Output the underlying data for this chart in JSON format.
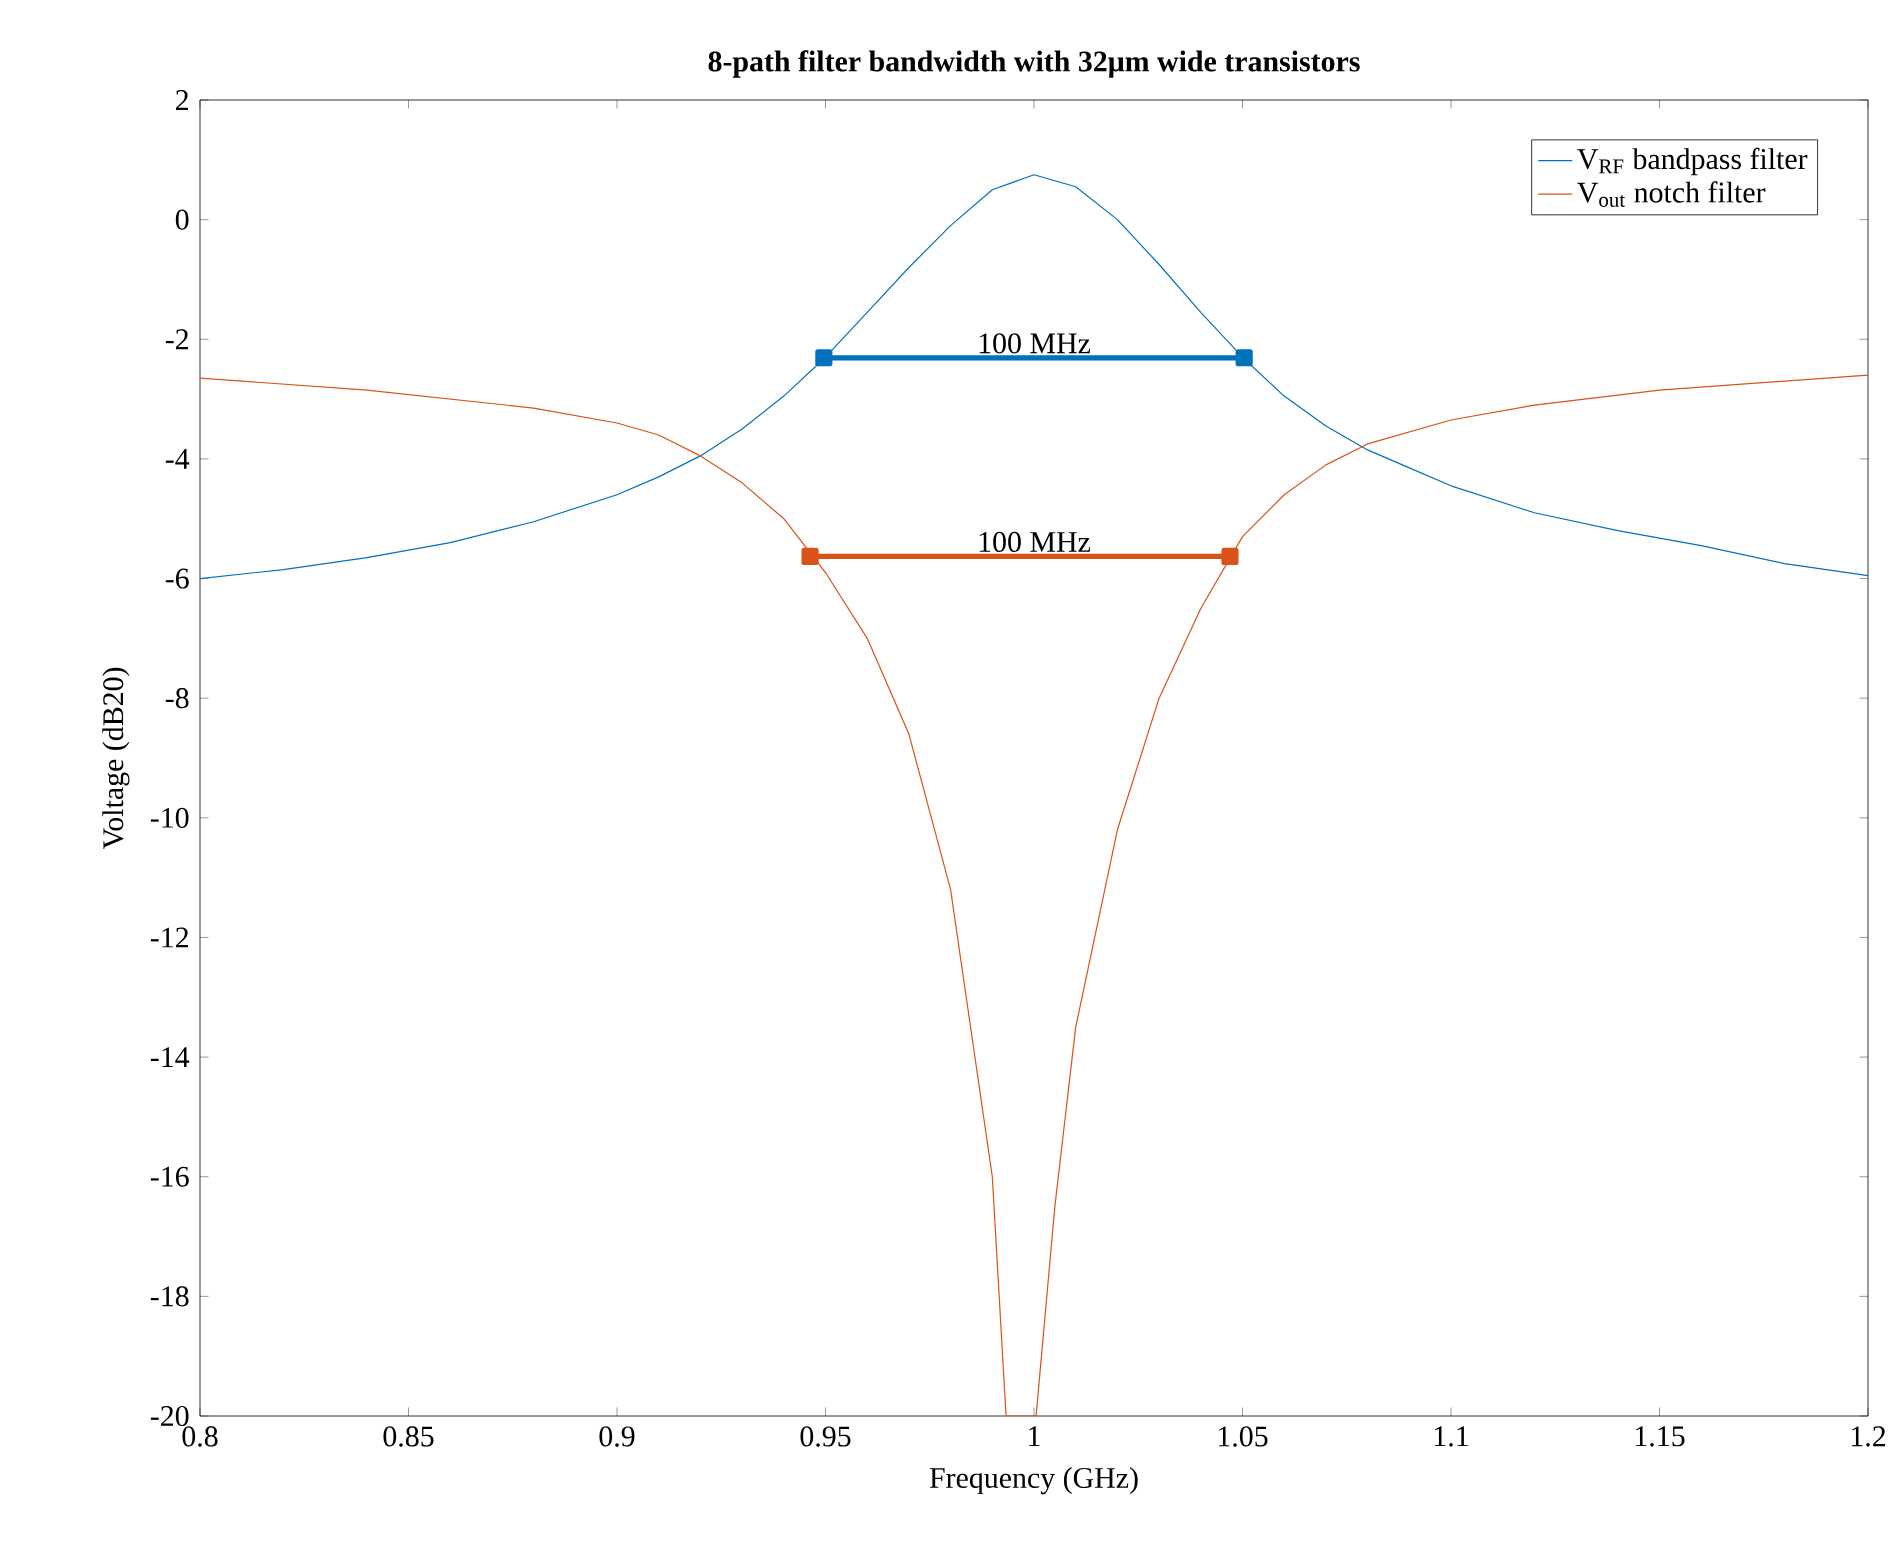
{
  "chart_data": {
    "type": "line",
    "title": "8-path filter bandwidth with 32μm wide transistors",
    "xlabel": "Frequency (GHz)",
    "ylabel": "Voltage (dB20)",
    "xlim": [
      0.8,
      1.2
    ],
    "ylim": [
      -20,
      2
    ],
    "xticks": [
      0.8,
      0.85,
      0.9,
      0.95,
      1,
      1.05,
      1.1,
      1.15,
      1.2
    ],
    "yticks": [
      -20,
      -18,
      -16,
      -14,
      -12,
      -10,
      -8,
      -6,
      -4,
      -2,
      0,
      2
    ],
    "legend": "top right",
    "grid": false,
    "series": [
      {
        "name": "V$_{RF}$ bandpass filter",
        "color": "#0072bd",
        "x": [
          0.8,
          0.82,
          0.84,
          0.86,
          0.88,
          0.9,
          0.91,
          0.92,
          0.93,
          0.94,
          0.95,
          0.96,
          0.97,
          0.98,
          0.99,
          1.0,
          1.01,
          1.02,
          1.03,
          1.04,
          1.05,
          1.06,
          1.07,
          1.08,
          1.09,
          1.1,
          1.12,
          1.14,
          1.16,
          1.18,
          1.2
        ],
        "values": [
          -6.0,
          -5.85,
          -5.65,
          -5.4,
          -5.05,
          -4.6,
          -4.3,
          -3.95,
          -3.5,
          -2.95,
          -2.3,
          -1.55,
          -0.8,
          -0.1,
          0.5,
          0.75,
          0.55,
          0.0,
          -0.75,
          -1.55,
          -2.3,
          -2.95,
          -3.45,
          -3.85,
          -4.15,
          -4.45,
          -4.9,
          -5.2,
          -5.45,
          -5.75,
          -5.95
        ]
      },
      {
        "name": "V$_{out}$ notch filter",
        "color": "#d95319",
        "x": [
          0.8,
          0.84,
          0.88,
          0.9,
          0.91,
          0.92,
          0.93,
          0.94,
          0.95,
          0.96,
          0.97,
          0.98,
          0.99,
          0.9933,
          1.0005,
          1.005,
          1.01,
          1.02,
          1.03,
          1.04,
          1.05,
          1.06,
          1.07,
          1.08,
          1.1,
          1.12,
          1.15,
          1.2
        ],
        "values": [
          -2.65,
          -2.85,
          -3.15,
          -3.4,
          -3.6,
          -3.95,
          -4.4,
          -5.0,
          -5.9,
          -7.0,
          -8.6,
          -11.2,
          -16.0,
          -20,
          -20,
          -16.5,
          -13.5,
          -10.2,
          -8.0,
          -6.5,
          -5.3,
          -4.6,
          -4.1,
          -3.75,
          -3.35,
          -3.1,
          -2.85,
          -2.6
        ]
      },
      {
        "color": "#0072bd",
        "marker": "square",
        "x": [
          0.9496,
          1.0504
        ],
        "values": [
          -2.31,
          -2.31
        ]
      },
      {
        "color": "#d95319",
        "marker": "square",
        "x": [
          0.9463,
          1.047
        ],
        "values": [
          -5.63,
          -5.63
        ]
      }
    ],
    "annotations": [
      {
        "text": "100 MHz",
        "x": 1.0,
        "y": -2.31
      },
      {
        "text": "100 MHz",
        "x": 1.0,
        "y": -5.63
      }
    ]
  }
}
